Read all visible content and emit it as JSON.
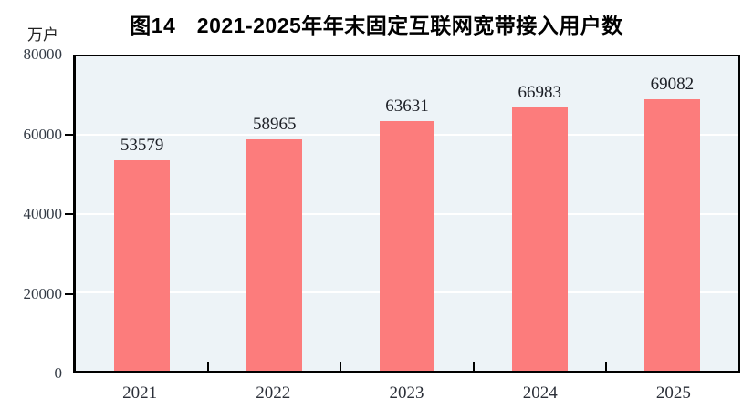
{
  "chart": {
    "title": "图14　2021-2025年年末固定互联网宽带接入用户数",
    "unit": "万户"
  },
  "chart_data": {
    "type": "bar",
    "title": "图14　2021-2025年年末固定互联网宽带接入用户数",
    "categories": [
      "2021",
      "2022",
      "2023",
      "2024",
      "2025"
    ],
    "values": [
      53579,
      58965,
      63631,
      66983,
      69082
    ],
    "xlabel": "",
    "ylabel": "万户",
    "ylim": [
      0,
      80000
    ],
    "yticks": [
      0,
      20000,
      40000,
      60000,
      80000
    ],
    "grid": true,
    "legend": "none",
    "data_labels": true,
    "colors": {
      "bar": "#FC7C7C",
      "plot_background": "#EDF3F7",
      "gridline": "#FFFFFF",
      "axis": "#000000"
    }
  }
}
